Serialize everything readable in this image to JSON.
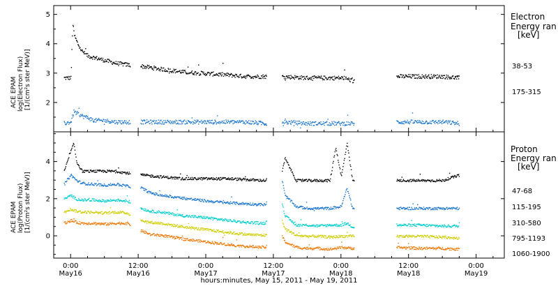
{
  "x_axis": {
    "title": "hours:minutes, May 15, 2011 - May 19, 2011",
    "range_hours": [
      -3,
      77
    ],
    "ticks": [
      {
        "hour": 0,
        "time": "0:00",
        "date": "May16"
      },
      {
        "hour": 12,
        "time": "12:00",
        "date": "May16"
      },
      {
        "hour": 24,
        "time": "0:00",
        "date": "May17"
      },
      {
        "hour": 36,
        "time": "12:00",
        "date": "May17"
      },
      {
        "hour": 48,
        "time": "0:00",
        "date": "May18"
      },
      {
        "hour": 60,
        "time": "12:00",
        "date": "May18"
      },
      {
        "hour": 72,
        "time": "0:00",
        "date": "May19"
      }
    ]
  },
  "chart_data": [
    {
      "type": "scatter",
      "panel": "electron",
      "ylabel_lines": [
        "ACE EPAM",
        "log(Electron Flux)",
        "[1/(cm²s ster MeV)]"
      ],
      "ylim": [
        1,
        5.3
      ],
      "yticks": [
        2,
        3,
        4,
        5
      ],
      "legend_title_lines": [
        "Electron",
        "Energy ran",
        "[keV]"
      ],
      "data_gaps_hours": [
        [
          10.5,
          12.3
        ],
        [
          34.8,
          37.5
        ],
        [
          50.3,
          57.8
        ],
        [
          69.5,
          77
        ]
      ],
      "series": [
        {
          "name": "38-53",
          "color": "#000000",
          "x": [
            -1.2,
            0,
            0.3,
            0.6,
            1,
            1.5,
            2,
            3,
            4,
            6,
            8,
            10,
            12.5,
            16,
            20,
            24,
            28,
            31,
            34.5,
            37.5,
            42,
            46,
            48.5,
            50,
            58,
            62,
            66,
            69
          ],
          "y": [
            2.85,
            2.85,
            4.7,
            4.3,
            4.1,
            3.9,
            3.75,
            3.6,
            3.55,
            3.45,
            3.35,
            3.3,
            3.25,
            3.15,
            3.05,
            3.0,
            2.95,
            2.9,
            2.9,
            2.9,
            2.85,
            2.85,
            2.85,
            2.75,
            2.9,
            2.9,
            2.9,
            2.85
          ]
        },
        {
          "name": "175-315",
          "color": "#1874cd",
          "x": [
            -1.2,
            0,
            0.5,
            1,
            2,
            3,
            4,
            6,
            8,
            10,
            12.5,
            16,
            20,
            24,
            28,
            31,
            34.5,
            37.5,
            42,
            46,
            48.5,
            50,
            58,
            62,
            66,
            69
          ],
          "y": [
            1.3,
            1.35,
            1.7,
            1.65,
            1.55,
            1.5,
            1.4,
            1.4,
            1.35,
            1.35,
            1.35,
            1.35,
            1.35,
            1.35,
            1.35,
            1.35,
            1.3,
            1.35,
            1.3,
            1.3,
            1.3,
            1.3,
            1.35,
            1.35,
            1.35,
            1.3
          ]
        }
      ]
    },
    {
      "type": "scatter",
      "panel": "proton",
      "ylabel_lines": [
        "ACE EPAM",
        "log(Proton Flux)",
        "[1/(cm²s ster MeV)]"
      ],
      "ylim": [
        -1.2,
        5.6
      ],
      "yticks": [
        0,
        2,
        4
      ],
      "legend_title_lines": [
        "Proton",
        "Energy ran",
        "[keV]"
      ],
      "data_gaps_hours": [
        [
          10.5,
          12.3
        ],
        [
          34.8,
          37.5
        ],
        [
          50.3,
          57.8
        ],
        [
          69.5,
          77
        ]
      ],
      "series": [
        {
          "name": "47-68",
          "color": "#000000",
          "x": [
            -1.2,
            0,
            0.5,
            1,
            2,
            4,
            6,
            8,
            10,
            12.5,
            16,
            20,
            24,
            28,
            31,
            34.5,
            37.5,
            38,
            40,
            42,
            44,
            46,
            47,
            48,
            49,
            50,
            58,
            62,
            66,
            69
          ],
          "y": [
            3.5,
            4.6,
            5.0,
            4.0,
            3.5,
            3.5,
            3.5,
            3.5,
            3.4,
            3.3,
            3.2,
            3.1,
            3.1,
            3.1,
            3.05,
            3.0,
            3.5,
            4.2,
            3.0,
            3.0,
            3.0,
            3.0,
            4.8,
            3.2,
            5.0,
            3.0,
            3.0,
            3.0,
            3.0,
            3.3
          ]
        },
        {
          "name": "115-195",
          "color": "#1874cd",
          "x": [
            -1.2,
            0,
            1,
            2,
            4,
            6,
            8,
            10,
            12.5,
            14,
            16,
            20,
            24,
            28,
            31,
            34.5,
            37.5,
            38,
            40,
            42,
            44,
            46,
            48,
            49,
            50,
            58,
            62,
            66,
            69
          ],
          "y": [
            2.8,
            3.3,
            3.0,
            2.85,
            2.8,
            2.75,
            2.8,
            2.7,
            2.6,
            2.35,
            2.2,
            2.05,
            1.9,
            1.8,
            1.75,
            1.7,
            3.0,
            2.2,
            1.6,
            1.5,
            1.5,
            1.5,
            1.6,
            2.6,
            1.5,
            1.5,
            1.5,
            1.5,
            1.5
          ]
        },
        {
          "name": "310-580",
          "color": "#00cdcd",
          "x": [
            -1.2,
            0,
            1,
            2,
            4,
            6,
            8,
            10,
            12.5,
            14,
            16,
            20,
            24,
            28,
            31,
            34.5,
            37.5,
            38,
            40,
            42,
            44,
            46,
            48,
            49,
            50,
            58,
            62,
            66,
            69
          ],
          "y": [
            2.0,
            2.2,
            2.0,
            1.95,
            1.95,
            1.9,
            1.95,
            1.9,
            1.5,
            1.35,
            1.3,
            1.1,
            1.0,
            0.85,
            0.75,
            0.7,
            1.8,
            1.1,
            0.6,
            0.6,
            0.55,
            0.6,
            0.6,
            0.7,
            0.5,
            0.6,
            0.6,
            0.55,
            0.55
          ]
        },
        {
          "name": "795-1193",
          "color": "#cdcd00",
          "x": [
            -1.2,
            0,
            1,
            2,
            4,
            6,
            8,
            10,
            12.5,
            14,
            16,
            20,
            24,
            28,
            31,
            34.5,
            37.5,
            38,
            40,
            42,
            44,
            46,
            48,
            50,
            58,
            62,
            66,
            69
          ],
          "y": [
            1.35,
            1.45,
            1.35,
            1.3,
            1.3,
            1.25,
            1.3,
            1.25,
            0.85,
            0.75,
            0.7,
            0.5,
            0.35,
            0.2,
            0.1,
            0.05,
            0.8,
            0.4,
            0.05,
            0.0,
            0.0,
            -0.05,
            0.0,
            0.0,
            0.0,
            0.0,
            -0.05,
            -0.1
          ]
        },
        {
          "name": "1060-1900",
          "color": "#ee7600",
          "x": [
            -1.2,
            0,
            1,
            2,
            4,
            6,
            8,
            10,
            12.5,
            14,
            16,
            20,
            24,
            28,
            31,
            34.5,
            37.5,
            38,
            40,
            42,
            44,
            46,
            48,
            50,
            58,
            62,
            66,
            69
          ],
          "y": [
            0.7,
            0.85,
            0.75,
            0.7,
            0.7,
            0.65,
            0.7,
            0.7,
            0.3,
            0.1,
            0.05,
            -0.15,
            -0.3,
            -0.45,
            -0.55,
            -0.6,
            0.0,
            -0.3,
            -0.6,
            -0.65,
            -0.65,
            -0.7,
            -0.6,
            -0.65,
            -0.6,
            -0.65,
            -0.65,
            -0.7
          ]
        }
      ]
    }
  ]
}
